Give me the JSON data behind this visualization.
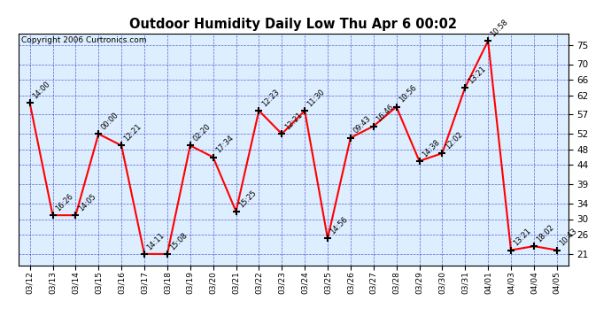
{
  "title": "Outdoor Humidity Daily Low Thu Apr 6 00:02",
  "copyright": "Copyright 2006 Curtronics.com",
  "bg_color": "#ffffff",
  "plot_bg_color": "#ddeeff",
  "line_color": "red",
  "marker_color": "black",
  "grid_color": "#0000bb",
  "points": [
    {
      "x": 0,
      "date": "03/12",
      "value": 60,
      "label": "14:00"
    },
    {
      "x": 1,
      "date": "03/13",
      "value": 31,
      "label": "16:26"
    },
    {
      "x": 2,
      "date": "03/14",
      "value": 31,
      "label": "14:05"
    },
    {
      "x": 3,
      "date": "03/15",
      "value": 52,
      "label": "00:00"
    },
    {
      "x": 4,
      "date": "03/16",
      "value": 49,
      "label": "12:21"
    },
    {
      "x": 5,
      "date": "03/17",
      "value": 21,
      "label": "14:11"
    },
    {
      "x": 6,
      "date": "03/18",
      "value": 21,
      "label": "15:08"
    },
    {
      "x": 7,
      "date": "03/19",
      "value": 49,
      "label": "02:20"
    },
    {
      "x": 8,
      "date": "03/20",
      "value": 46,
      "label": "17:34"
    },
    {
      "x": 9,
      "date": "03/21",
      "value": 32,
      "label": "15:25"
    },
    {
      "x": 10,
      "date": "03/22",
      "value": 58,
      "label": "12:23"
    },
    {
      "x": 11,
      "date": "03/23",
      "value": 52,
      "label": "12:21"
    },
    {
      "x": 12,
      "date": "03/24",
      "value": 58,
      "label": "11:30"
    },
    {
      "x": 13,
      "date": "03/25",
      "value": 25,
      "label": "14:56"
    },
    {
      "x": 14,
      "date": "03/26",
      "value": 51,
      "label": "09:43"
    },
    {
      "x": 15,
      "date": "03/27",
      "value": 54,
      "label": "16:46"
    },
    {
      "x": 16,
      "date": "03/28",
      "value": 59,
      "label": "10:56"
    },
    {
      "x": 17,
      "date": "03/29",
      "value": 45,
      "label": "14:38"
    },
    {
      "x": 18,
      "date": "03/30",
      "value": 47,
      "label": "12:02"
    },
    {
      "x": 19,
      "date": "03/31",
      "value": 64,
      "label": "13:21"
    },
    {
      "x": 20,
      "date": "04/01",
      "value": 76,
      "label": "10:58"
    },
    {
      "x": 21,
      "date": "04/03",
      "value": 22,
      "label": "13:21"
    },
    {
      "x": 22,
      "date": "04/04",
      "value": 23,
      "label": "18:02"
    },
    {
      "x": 23,
      "date": "04/05",
      "value": 22,
      "label": "10:43"
    }
  ],
  "yticks": [
    21,
    26,
    30,
    34,
    39,
    44,
    48,
    52,
    57,
    62,
    66,
    70,
    75
  ],
  "ylim": [
    18,
    78
  ],
  "xlim": [
    -0.5,
    23.5
  ],
  "figsize": [
    6.9,
    3.75
  ],
  "dpi": 100
}
